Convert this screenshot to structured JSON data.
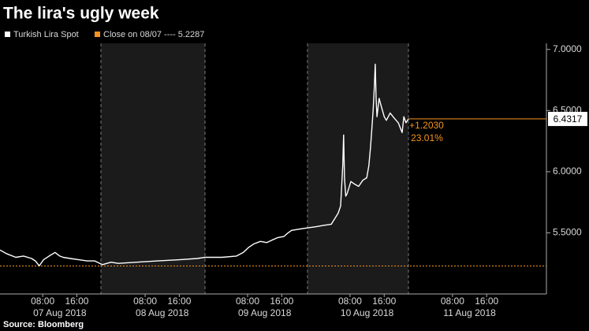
{
  "chart_data": {
    "type": "line",
    "title": "The lira's ugly week",
    "source": "Source: Bloomberg",
    "series": [
      {
        "name": "Turkish Lira Spot",
        "color": "#ffffff",
        "x": [
          -2,
          -0.5,
          1.7,
          3.5,
          5.4,
          6.3,
          7.2,
          8.2,
          9.5,
          10.9,
          12,
          12.8,
          14.5,
          16.5,
          18.4,
          20.2,
          22,
          24,
          25.7,
          30,
          34.9,
          40,
          44.2,
          46,
          50,
          53.4,
          55,
          56.2,
          57.5,
          59,
          60.5,
          61.7,
          63,
          64.5,
          65.5,
          66.3,
          68,
          70,
          72,
          73.7,
          75.6,
          76.5,
          77.2,
          77.8,
          78.3,
          78.5,
          78.7,
          79.0,
          79.3,
          80.2,
          81,
          82,
          83,
          83.9,
          84.4,
          84.8,
          85.1,
          85.4,
          85.7,
          85.9,
          86.1,
          86.3,
          86.8,
          87.2,
          88,
          88.5,
          89.4,
          90.3,
          91.3,
          92.2,
          92.6,
          93.1,
          93.7
        ],
        "values": [
          5.36,
          5.33,
          5.3,
          5.31,
          5.29,
          5.27,
          5.23,
          5.28,
          5.31,
          5.34,
          5.31,
          5.3,
          5.29,
          5.28,
          5.27,
          5.27,
          5.24,
          5.26,
          5.25,
          5.26,
          5.27,
          5.28,
          5.29,
          5.3,
          5.3,
          5.31,
          5.34,
          5.38,
          5.41,
          5.43,
          5.42,
          5.44,
          5.46,
          5.47,
          5.5,
          5.52,
          5.53,
          5.54,
          5.55,
          5.56,
          5.57,
          5.62,
          5.66,
          5.72,
          6.05,
          6.3,
          5.95,
          5.8,
          5.82,
          5.92,
          5.9,
          5.88,
          5.93,
          5.95,
          6.05,
          6.2,
          6.35,
          6.5,
          6.7,
          6.88,
          6.6,
          6.45,
          6.6,
          6.55,
          6.45,
          6.42,
          6.48,
          6.44,
          6.4,
          6.32,
          6.45,
          6.4,
          6.4317
        ]
      }
    ],
    "reference": {
      "legend_label": "Close on 08/07 ---- 5.2287",
      "value": 5.2287,
      "color": "#f7931e"
    },
    "last_value_label": "6.4317",
    "change_label": "+1.2030",
    "change_pct_label": "23.01%",
    "xlim": [
      -2,
      126
    ],
    "ylim": [
      5.0,
      7.05
    ],
    "yticks": [
      {
        "value": 5.5,
        "label": "5.5000"
      },
      {
        "value": 6,
        "label": "6.0000"
      },
      {
        "value": 6.5,
        "label": "6.5000"
      },
      {
        "value": 7,
        "label": "7.0000"
      }
    ],
    "xticks": [
      {
        "value": 8,
        "label": "08:00"
      },
      {
        "value": 16,
        "label": "16:00"
      },
      {
        "value": 32,
        "label": "08:00"
      },
      {
        "value": 40,
        "label": "16:00"
      },
      {
        "value": 56,
        "label": "08:00"
      },
      {
        "value": 64,
        "label": "16:00"
      },
      {
        "value": 80,
        "label": "08:00"
      },
      {
        "value": 88,
        "label": "16:00"
      },
      {
        "value": 104,
        "label": "08:00"
      },
      {
        "value": 112,
        "label": "16:00"
      }
    ],
    "xday_labels": [
      {
        "value": 12,
        "label": "07 Aug 2018"
      },
      {
        "value": 36,
        "label": "08 Aug 2018"
      },
      {
        "value": 60,
        "label": "09 Aug 2018"
      },
      {
        "value": 84,
        "label": "10 Aug 2018"
      },
      {
        "value": 108,
        "label": "11 Aug 2018"
      }
    ],
    "grid": false
  }
}
